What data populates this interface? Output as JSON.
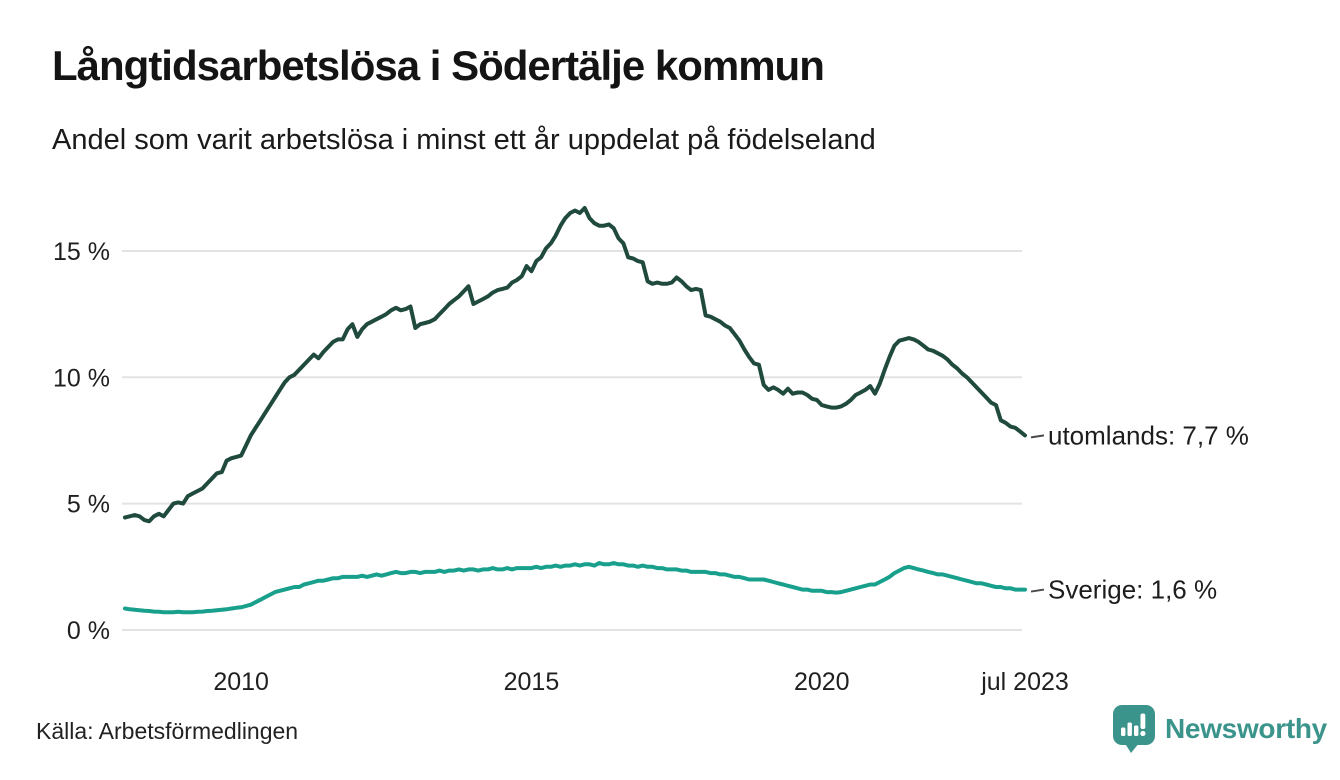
{
  "header": {
    "title": "Långtidsarbetslösa i Södertälje kommun",
    "subtitle": "Andel som varit arbetslösa i minst ett år uppdelat på födelseland"
  },
  "footer": {
    "source": "Källa: Arbetsförmedlingen",
    "logo_text": "Newsworthy",
    "logo_color": "#3b948b"
  },
  "colors": {
    "utomlands_line": "#1f4a3d",
    "sverige_line": "#18a08c",
    "gridline": "#e3e3e3",
    "axis_text": "#1f1f1f",
    "label_text": "#1d1d1d",
    "dash": "#4a4a4a"
  },
  "chart_data": {
    "type": "line",
    "title": "Långtidsarbetslösa i Södertälje kommun",
    "subtitle": "Andel som varit arbetslösa i minst ett år uppdelat på födelseland",
    "source": "Källa: Arbetsförmedlingen",
    "x_unit": "month",
    "x_start": "2008-01",
    "x_end": "2023-07",
    "ylim": [
      0,
      17.2
    ],
    "grid": "horizontal",
    "legend_position": "end-of-line-labels",
    "y_ticks": [
      {
        "label": "0 %",
        "value": 0
      },
      {
        "label": "5 %",
        "value": 5
      },
      {
        "label": "10 %",
        "value": 10
      },
      {
        "label": "15 %",
        "value": 15
      }
    ],
    "x_ticks": [
      {
        "label": "2010",
        "month_index": 24
      },
      {
        "label": "2015",
        "month_index": 84
      },
      {
        "label": "2020",
        "month_index": 144
      },
      {
        "label": "jul 2023",
        "month_index": 186
      }
    ],
    "series": [
      {
        "name": "utomlands",
        "end_label": "utomlands: 7,7 %",
        "last_value_text": "7,7 %",
        "color": "#1f4a3d",
        "stroke_width": 4,
        "values": [
          4.45,
          4.5,
          4.55,
          4.5,
          4.35,
          4.3,
          4.5,
          4.6,
          4.5,
          4.75,
          5.0,
          5.05,
          5.0,
          5.3,
          5.4,
          5.5,
          5.6,
          5.8,
          6.0,
          6.2,
          6.25,
          6.7,
          6.8,
          6.85,
          6.9,
          7.3,
          7.7,
          8.0,
          8.3,
          8.6,
          8.9,
          9.2,
          9.5,
          9.8,
          10.0,
          10.1,
          10.3,
          10.5,
          10.7,
          10.9,
          10.75,
          11.0,
          11.2,
          11.4,
          11.5,
          11.5,
          11.9,
          12.1,
          11.6,
          11.9,
          12.1,
          12.2,
          12.3,
          12.4,
          12.5,
          12.65,
          12.75,
          12.65,
          12.7,
          12.8,
          11.95,
          12.1,
          12.15,
          12.2,
          12.3,
          12.5,
          12.7,
          12.9,
          13.05,
          13.2,
          13.4,
          13.6,
          12.9,
          13.0,
          13.1,
          13.2,
          13.35,
          13.45,
          13.5,
          13.55,
          13.75,
          13.85,
          14.0,
          14.4,
          14.2,
          14.6,
          14.75,
          15.1,
          15.3,
          15.6,
          16.0,
          16.3,
          16.5,
          16.6,
          16.5,
          16.7,
          16.3,
          16.1,
          16.0,
          16.0,
          16.05,
          15.9,
          15.5,
          15.3,
          14.75,
          14.7,
          14.6,
          14.55,
          13.8,
          13.7,
          13.75,
          13.7,
          13.7,
          13.75,
          13.95,
          13.8,
          13.6,
          13.45,
          13.5,
          13.45,
          12.45,
          12.4,
          12.3,
          12.2,
          12.05,
          11.95,
          11.7,
          11.45,
          11.1,
          10.8,
          10.55,
          10.5,
          9.7,
          9.5,
          9.6,
          9.5,
          9.35,
          9.55,
          9.35,
          9.4,
          9.4,
          9.3,
          9.15,
          9.1,
          8.9,
          8.85,
          8.8,
          8.8,
          8.85,
          8.95,
          9.1,
          9.3,
          9.4,
          9.5,
          9.65,
          9.35,
          9.75,
          10.3,
          10.8,
          11.25,
          11.45,
          11.5,
          11.55,
          11.5,
          11.4,
          11.25,
          11.1,
          11.05,
          10.95,
          10.85,
          10.7,
          10.5,
          10.35,
          10.15,
          10.0,
          9.8,
          9.6,
          9.4,
          9.2,
          9.0,
          8.9,
          8.3,
          8.2,
          8.05,
          8.0,
          7.85,
          7.7
        ]
      },
      {
        "name": "Sverige",
        "end_label": "Sverige: 1,6 %",
        "last_value_text": "1,6 %",
        "color": "#18a08c",
        "stroke_width": 4,
        "values": [
          0.85,
          0.82,
          0.8,
          0.78,
          0.76,
          0.75,
          0.73,
          0.72,
          0.7,
          0.7,
          0.7,
          0.72,
          0.7,
          0.7,
          0.7,
          0.72,
          0.73,
          0.75,
          0.76,
          0.78,
          0.8,
          0.82,
          0.85,
          0.88,
          0.9,
          0.95,
          1.0,
          1.1,
          1.2,
          1.3,
          1.4,
          1.5,
          1.55,
          1.6,
          1.65,
          1.7,
          1.7,
          1.8,
          1.85,
          1.9,
          1.95,
          1.95,
          2.0,
          2.05,
          2.05,
          2.1,
          2.1,
          2.1,
          2.1,
          2.15,
          2.1,
          2.15,
          2.2,
          2.15,
          2.2,
          2.25,
          2.3,
          2.25,
          2.25,
          2.3,
          2.3,
          2.25,
          2.3,
          2.3,
          2.3,
          2.35,
          2.3,
          2.35,
          2.35,
          2.4,
          2.35,
          2.4,
          2.4,
          2.35,
          2.4,
          2.4,
          2.45,
          2.4,
          2.4,
          2.45,
          2.4,
          2.45,
          2.45,
          2.45,
          2.45,
          2.5,
          2.45,
          2.5,
          2.5,
          2.55,
          2.5,
          2.55,
          2.55,
          2.6,
          2.55,
          2.6,
          2.6,
          2.55,
          2.65,
          2.6,
          2.6,
          2.65,
          2.6,
          2.6,
          2.55,
          2.55,
          2.5,
          2.55,
          2.5,
          2.5,
          2.45,
          2.45,
          2.4,
          2.4,
          2.4,
          2.35,
          2.35,
          2.3,
          2.3,
          2.3,
          2.3,
          2.25,
          2.25,
          2.2,
          2.2,
          2.15,
          2.1,
          2.1,
          2.05,
          2.0,
          2.0,
          2.0,
          2.0,
          1.95,
          1.9,
          1.85,
          1.8,
          1.75,
          1.7,
          1.65,
          1.6,
          1.6,
          1.55,
          1.55,
          1.55,
          1.5,
          1.5,
          1.48,
          1.5,
          1.55,
          1.6,
          1.65,
          1.7,
          1.75,
          1.8,
          1.8,
          1.9,
          2.0,
          2.1,
          2.25,
          2.35,
          2.45,
          2.5,
          2.45,
          2.4,
          2.35,
          2.3,
          2.25,
          2.2,
          2.2,
          2.15,
          2.1,
          2.05,
          2.0,
          1.95,
          1.9,
          1.85,
          1.85,
          1.8,
          1.75,
          1.7,
          1.7,
          1.65,
          1.65,
          1.6,
          1.6,
          1.6
        ]
      }
    ]
  }
}
